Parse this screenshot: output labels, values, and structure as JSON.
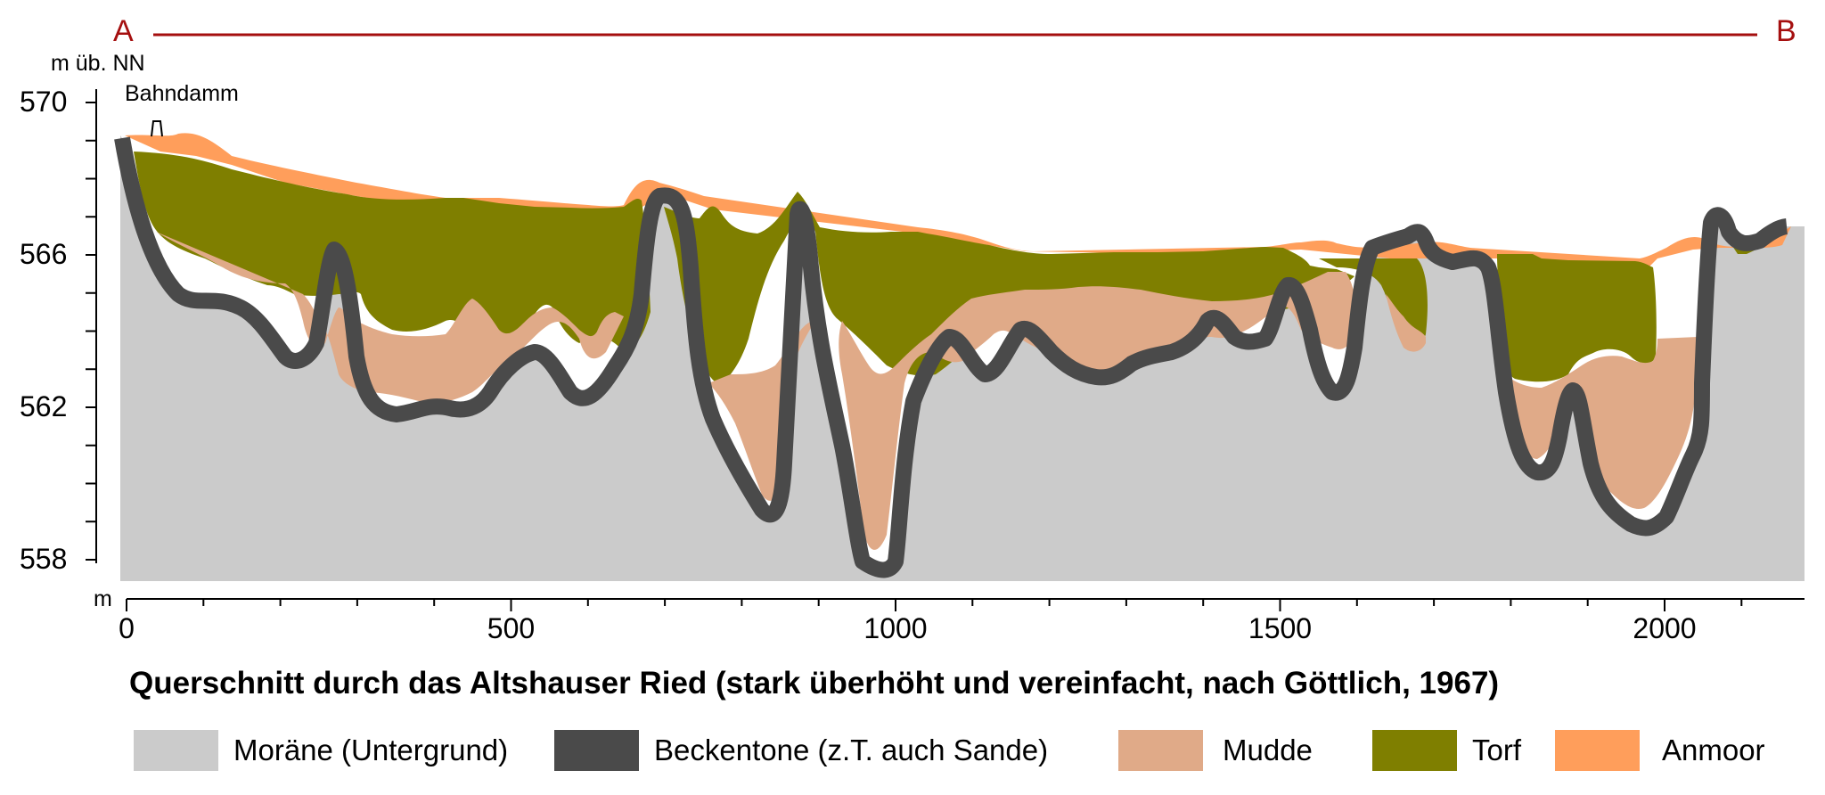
{
  "profile": {
    "start_label": "A",
    "end_label": "B",
    "line_color": "#a50f0f"
  },
  "y_axis": {
    "unit_label": "m üb. NN",
    "ticks": [
      {
        "value": 570,
        "label": "570"
      },
      {
        "value": 566,
        "label": "566"
      },
      {
        "value": 562,
        "label": "562"
      },
      {
        "value": 558,
        "label": "558"
      }
    ]
  },
  "x_axis": {
    "unit_label": "m",
    "ticks": [
      {
        "value": 0,
        "label": "0"
      },
      {
        "value": 500,
        "label": "500"
      },
      {
        "value": 1000,
        "label": "1000"
      },
      {
        "value": 1500,
        "label": "1500"
      },
      {
        "value": 2000,
        "label": "2000"
      }
    ]
  },
  "annotation": {
    "label": "Bahndamm"
  },
  "caption": "Querschnitt durch das Altshauser Ried (stark überhöht und vereinfacht, nach Göttlich, 1967)",
  "legend": [
    {
      "key": "moraene",
      "label": "Moräne (Untergrund)",
      "color": "#cbcbcb"
    },
    {
      "key": "beckentone",
      "label": "Beckentone (z.T. auch Sande)",
      "color": "#4a4a4a"
    },
    {
      "key": "mudde",
      "label": "Mudde",
      "color": "#e0aa88"
    },
    {
      "key": "torf",
      "label": "Torf",
      "color": "#7f7f00"
    },
    {
      "key": "anmoor",
      "label": "Anmoor",
      "color": "#ff9e5b"
    }
  ]
}
